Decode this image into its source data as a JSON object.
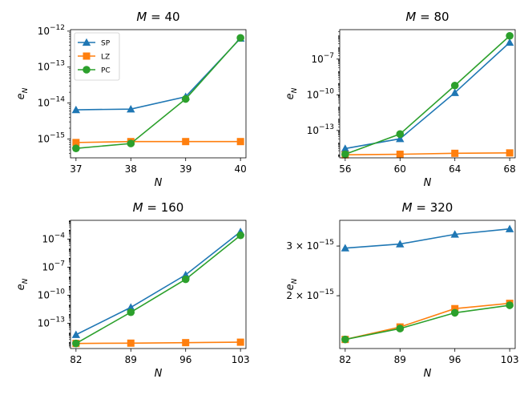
{
  "chart_data": [
    {
      "type": "line",
      "title": "M = 40",
      "title_var": "M",
      "title_val": "40",
      "xlabel": "N",
      "ylabel": "e_N",
      "yscale": "log",
      "x": [
        37,
        38,
        39,
        40
      ],
      "xlim": [
        36.9,
        40.1
      ],
      "ylim": [
        3e-16,
        1.1e-12
      ],
      "xticks": [
        "37",
        "38",
        "39",
        "40"
      ],
      "yticks": [
        {
          "exp": -15,
          "base": "10",
          "sup": "−15"
        },
        {
          "exp": -14,
          "base": "10",
          "sup": "−14"
        },
        {
          "exp": -13,
          "base": "10",
          "sup": "−13"
        },
        {
          "exp": -12,
          "base": "10",
          "sup": "−12"
        }
      ],
      "legend": {
        "placement": "top-left",
        "entries": [
          "SP",
          "LZ",
          "PC"
        ]
      },
      "series": [
        {
          "name": "SP",
          "color": "#1f77b4",
          "marker": "triangle",
          "values": [
            6.5e-15,
            6.8e-15,
            1.5e-14,
            6.3e-13
          ]
        },
        {
          "name": "LZ",
          "color": "#ff7f0e",
          "marker": "square",
          "values": [
            8e-16,
            8.5e-16,
            8.5e-16,
            8.5e-16
          ]
        },
        {
          "name": "PC",
          "color": "#2ca02c",
          "marker": "circle",
          "values": [
            5.5e-16,
            7.5e-16,
            1.3e-14,
            6.5e-13
          ]
        }
      ]
    },
    {
      "type": "line",
      "title": "M = 80",
      "title_var": "M",
      "title_val": "80",
      "xlabel": "N",
      "ylabel": "e_N",
      "yscale": "log",
      "x": [
        56,
        60,
        64,
        68
      ],
      "xlim": [
        55.6,
        68.4
      ],
      "ylim": [
        5e-16,
        3e-05
      ],
      "xticks": [
        "56",
        "60",
        "64",
        "68"
      ],
      "yticks": [
        {
          "exp": -13,
          "base": "10",
          "sup": "−13"
        },
        {
          "exp": -10,
          "base": "10",
          "sup": "−10"
        },
        {
          "exp": -7,
          "base": "10",
          "sup": "−7"
        }
      ],
      "legend": null,
      "series": [
        {
          "name": "SP",
          "color": "#1f77b4",
          "marker": "triangle",
          "values": [
            3e-15,
            2e-14,
            1.5e-10,
            2.5e-06
          ]
        },
        {
          "name": "LZ",
          "color": "#ff7f0e",
          "marker": "square",
          "values": [
            9e-16,
            1e-15,
            1.2e-15,
            1.3e-15
          ]
        },
        {
          "name": "PC",
          "color": "#2ca02c",
          "marker": "circle",
          "values": [
            1e-15,
            5e-14,
            6e-10,
            9e-06
          ]
        }
      ]
    },
    {
      "type": "line",
      "title": "M = 160",
      "title_var": "M",
      "title_val": "160",
      "xlabel": "N",
      "ylabel": "e_N",
      "yscale": "log",
      "x": [
        82,
        89,
        96,
        103
      ],
      "xlim": [
        81.3,
        103.7
      ],
      "ylim": [
        2e-16,
        0.01
      ],
      "xticks": [
        "82",
        "89",
        "96",
        "103"
      ],
      "yticks": [
        {
          "exp": -13,
          "base": "10",
          "sup": "−13"
        },
        {
          "exp": -10,
          "base": "10",
          "sup": "−10"
        },
        {
          "exp": -7,
          "base": "10",
          "sup": "−7"
        },
        {
          "exp": -4,
          "base": "10",
          "sup": "−4"
        }
      ],
      "legend": null,
      "series": [
        {
          "name": "SP",
          "color": "#1f77b4",
          "marker": "triangle",
          "values": [
            6e-15,
            5e-12,
            1.5e-08,
            0.0006
          ]
        },
        {
          "name": "LZ",
          "color": "#ff7f0e",
          "marker": "square",
          "values": [
            7e-16,
            7.5e-16,
            8.5e-16,
            9.5e-16
          ]
        },
        {
          "name": "PC",
          "color": "#2ca02c",
          "marker": "circle",
          "values": [
            7e-16,
            1.5e-12,
            5e-09,
            0.00025
          ]
        }
      ]
    },
    {
      "type": "line",
      "title": "M = 320",
      "title_var": "M",
      "title_val": "320",
      "xlabel": "N",
      "ylabel": "e_N",
      "yscale": "log",
      "x": [
        82,
        89,
        96,
        103
      ],
      "xlim": [
        81.3,
        103.7
      ],
      "ylim": [
        1.3e-15,
        3.7e-15
      ],
      "xticks": [
        "82",
        "89",
        "96",
        "103"
      ],
      "yticks": [
        {
          "value": 2e-15,
          "base": "2 × 10",
          "sup": "−15"
        },
        {
          "value": 3e-15,
          "base": "3 × 10",
          "sup": "−15"
        }
      ],
      "legend": null,
      "series": [
        {
          "name": "SP",
          "color": "#1f77b4",
          "marker": "triangle",
          "values": [
            2.95e-15,
            3.05e-15,
            3.3e-15,
            3.45e-15
          ]
        },
        {
          "name": "LZ",
          "color": "#ff7f0e",
          "marker": "square",
          "values": [
            1.4e-15,
            1.55e-15,
            1.8e-15,
            1.88e-15
          ]
        },
        {
          "name": "PC",
          "color": "#2ca02c",
          "marker": "circle",
          "values": [
            1.4e-15,
            1.53e-15,
            1.74e-15,
            1.85e-15
          ]
        }
      ]
    }
  ]
}
